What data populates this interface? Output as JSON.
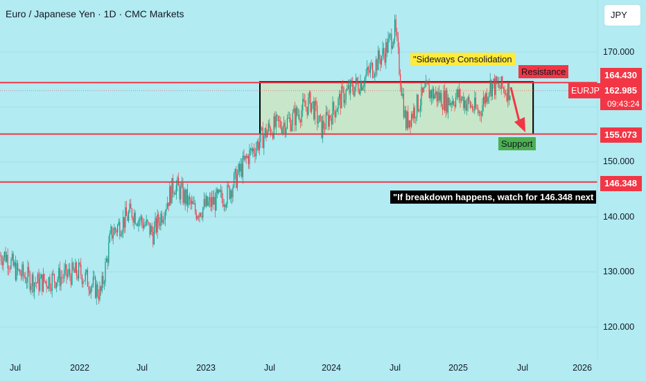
{
  "header": {
    "title": "Euro / Japanese Yen · 1D · CMC Markets"
  },
  "currency": "JPY",
  "symbol": "EURJPY",
  "last_price": "162.985",
  "countdown": "09:43:24",
  "price_axis": {
    "ticks": [
      "170.000",
      "150.000",
      "140.000",
      "130.000",
      "120.000"
    ],
    "highlighted_levels": [
      "164.430",
      "155.073",
      "146.348"
    ]
  },
  "time_axis": {
    "ticks": [
      "Jul",
      "2022",
      "Jul",
      "2023",
      "Jul",
      "2024",
      "Jul",
      "2025",
      "Jul",
      "2026"
    ]
  },
  "annotations": {
    "consolidation": "\"Sideways Consolidation",
    "resistance": "Resistance",
    "support": "Support",
    "breakdown": "\"If breakdown happens, watch for 146.348 next"
  },
  "colors": {
    "background": "#b2ebf2",
    "candle_up": "#089981",
    "candle_down": "#f23645",
    "level_line": "#f23645",
    "range_box_fill": "#c8e6c9",
    "range_box_border": "#000000",
    "arrow": "#f23645"
  },
  "chart_data": {
    "type": "candlestick",
    "instrument": "EUR/JPY",
    "timeframe": "1D",
    "ylim": [
      118,
      178
    ],
    "x": [
      "2021-06",
      "2021-07",
      "2021-09",
      "2021-11",
      "2022-01",
      "2022-03",
      "2022-04",
      "2022-06",
      "2022-08",
      "2022-10",
      "2022-12",
      "2023-01",
      "2023-03",
      "2023-05",
      "2023-07",
      "2023-09",
      "2023-11",
      "2023-12",
      "2024-02",
      "2024-04",
      "2024-06",
      "2024-07",
      "2024-08",
      "2024-10",
      "2024-12",
      "2025-01",
      "2025-03",
      "2025-04",
      "2025-06"
    ],
    "close": [
      133,
      130,
      128,
      129,
      130,
      126,
      137,
      141,
      137,
      146,
      141,
      142,
      144,
      151,
      156,
      157.5,
      161,
      156,
      162,
      165,
      170,
      174,
      157,
      163,
      161,
      162,
      159,
      164,
      163
    ],
    "levels": {
      "resistance": 164.43,
      "support": 155.073,
      "breakdown_target": 146.348
    },
    "range_box": {
      "x": [
        "2023-07",
        "2025-08"
      ],
      "y": [
        155.073,
        164.43
      ]
    }
  }
}
